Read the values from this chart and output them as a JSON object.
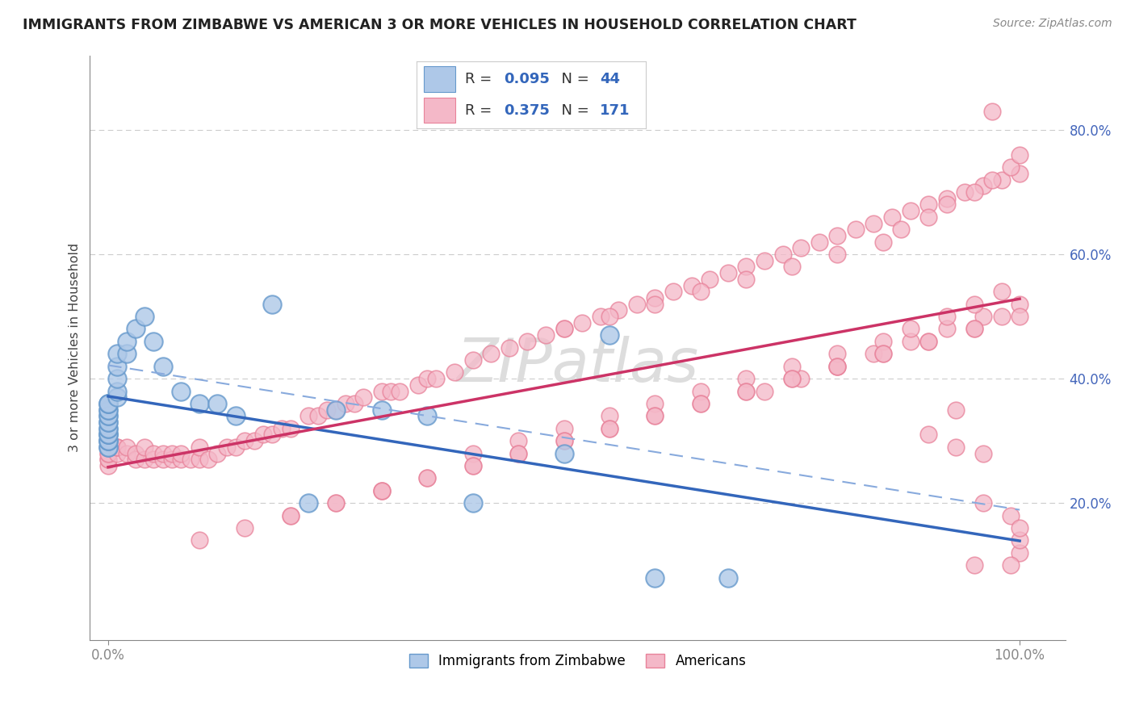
{
  "title": "IMMIGRANTS FROM ZIMBABWE VS AMERICAN 3 OR MORE VEHICLES IN HOUSEHOLD CORRELATION CHART",
  "source": "Source: ZipAtlas.com",
  "ylabel": "3 or more Vehicles in Household",
  "legend_label1": "Immigrants from Zimbabwe",
  "legend_label2": "Americans",
  "r1": 0.095,
  "n1": 44,
  "r2": 0.375,
  "n2": 171,
  "color_blue": "#aec8e8",
  "color_blue_edge": "#6699cc",
  "color_pink": "#f4b8c8",
  "color_pink_edge": "#e8829a",
  "color_blue_line": "#3366bb",
  "color_pink_line": "#cc3366",
  "color_blue_dashed": "#88aadd",
  "color_text_axis": "#4466bb",
  "background_color": "#ffffff",
  "grid_color": "#cccccc",
  "watermark": "ZIPatlas",
  "watermark_color": "#dddddd",
  "ytick_labels": [
    "20.0%",
    "40.0%",
    "60.0%",
    "80.0%"
  ],
  "ytick_vals": [
    0.2,
    0.4,
    0.6,
    0.8
  ],
  "blue_x": [
    0.0,
    0.0,
    0.0,
    0.0,
    0.0,
    0.0,
    0.0,
    0.0,
    0.0,
    0.0,
    0.0,
    0.0,
    0.0,
    0.0,
    0.0,
    0.0,
    0.0,
    0.0,
    0.0,
    0.01,
    0.01,
    0.01,
    0.01,
    0.01,
    0.02,
    0.02,
    0.03,
    0.04,
    0.05,
    0.06,
    0.08,
    0.1,
    0.12,
    0.14,
    0.18,
    0.22,
    0.25,
    0.3,
    0.35,
    0.4,
    0.5,
    0.55,
    0.6,
    0.68
  ],
  "blue_y": [
    0.29,
    0.29,
    0.3,
    0.3,
    0.3,
    0.31,
    0.31,
    0.31,
    0.32,
    0.32,
    0.33,
    0.33,
    0.34,
    0.34,
    0.35,
    0.35,
    0.36,
    0.36,
    0.36,
    0.37,
    0.38,
    0.4,
    0.42,
    0.44,
    0.44,
    0.46,
    0.48,
    0.5,
    0.46,
    0.42,
    0.38,
    0.36,
    0.36,
    0.34,
    0.52,
    0.2,
    0.35,
    0.35,
    0.34,
    0.2,
    0.28,
    0.47,
    0.08,
    0.08
  ],
  "pink_x": [
    0.0,
    0.0,
    0.0,
    0.0,
    0.0,
    0.0,
    0.0,
    0.0,
    0.0,
    0.0,
    0.01,
    0.01,
    0.01,
    0.02,
    0.02,
    0.03,
    0.03,
    0.04,
    0.04,
    0.05,
    0.05,
    0.06,
    0.06,
    0.07,
    0.07,
    0.08,
    0.08,
    0.09,
    0.1,
    0.1,
    0.11,
    0.12,
    0.13,
    0.14,
    0.15,
    0.16,
    0.17,
    0.18,
    0.19,
    0.2,
    0.22,
    0.23,
    0.24,
    0.25,
    0.26,
    0.27,
    0.28,
    0.3,
    0.31,
    0.32,
    0.34,
    0.35,
    0.36,
    0.38,
    0.4,
    0.42,
    0.44,
    0.46,
    0.48,
    0.5,
    0.52,
    0.54,
    0.56,
    0.58,
    0.6,
    0.62,
    0.64,
    0.66,
    0.68,
    0.7,
    0.72,
    0.74,
    0.76,
    0.78,
    0.8,
    0.82,
    0.84,
    0.86,
    0.88,
    0.9,
    0.92,
    0.94,
    0.96,
    0.98,
    1.0,
    0.5,
    0.55,
    0.6,
    0.65,
    0.7,
    0.75,
    0.8,
    0.85,
    0.87,
    0.9,
    0.92,
    0.95,
    0.97,
    0.99,
    1.0,
    0.72,
    0.76,
    0.8,
    0.84,
    0.88,
    0.92,
    0.96,
    1.0,
    0.4,
    0.45,
    0.5,
    0.55,
    0.6,
    0.65,
    0.7,
    0.75,
    0.8,
    0.85,
    0.88,
    0.92,
    0.95,
    0.98,
    0.3,
    0.35,
    0.4,
    0.45,
    0.5,
    0.55,
    0.6,
    0.65,
    0.7,
    0.75,
    0.8,
    0.85,
    0.9,
    0.95,
    0.98,
    0.2,
    0.25,
    0.3,
    0.35,
    0.4,
    0.45,
    0.5,
    0.55,
    0.6,
    0.65,
    0.7,
    0.75,
    0.8,
    0.85,
    0.9,
    0.95,
    1.0,
    0.1,
    0.15,
    0.2,
    0.25,
    0.3,
    0.95,
    1.0,
    0.97,
    0.99,
    1.0,
    0.93,
    0.96,
    0.99,
    1.0,
    0.9,
    0.93,
    0.96
  ],
  "pink_y": [
    0.26,
    0.27,
    0.27,
    0.28,
    0.28,
    0.29,
    0.29,
    0.3,
    0.3,
    0.3,
    0.28,
    0.29,
    0.29,
    0.28,
    0.29,
    0.27,
    0.28,
    0.27,
    0.29,
    0.27,
    0.28,
    0.27,
    0.28,
    0.27,
    0.28,
    0.27,
    0.28,
    0.27,
    0.27,
    0.29,
    0.27,
    0.28,
    0.29,
    0.29,
    0.3,
    0.3,
    0.31,
    0.31,
    0.32,
    0.32,
    0.34,
    0.34,
    0.35,
    0.35,
    0.36,
    0.36,
    0.37,
    0.38,
    0.38,
    0.38,
    0.39,
    0.4,
    0.4,
    0.41,
    0.43,
    0.44,
    0.45,
    0.46,
    0.47,
    0.48,
    0.49,
    0.5,
    0.51,
    0.52,
    0.53,
    0.54,
    0.55,
    0.56,
    0.57,
    0.58,
    0.59,
    0.6,
    0.61,
    0.62,
    0.63,
    0.64,
    0.65,
    0.66,
    0.67,
    0.68,
    0.69,
    0.7,
    0.71,
    0.72,
    0.73,
    0.48,
    0.5,
    0.52,
    0.54,
    0.56,
    0.58,
    0.6,
    0.62,
    0.64,
    0.66,
    0.68,
    0.7,
    0.72,
    0.74,
    0.76,
    0.38,
    0.4,
    0.42,
    0.44,
    0.46,
    0.48,
    0.5,
    0.52,
    0.28,
    0.3,
    0.32,
    0.34,
    0.36,
    0.38,
    0.4,
    0.42,
    0.44,
    0.46,
    0.48,
    0.5,
    0.52,
    0.54,
    0.22,
    0.24,
    0.26,
    0.28,
    0.3,
    0.32,
    0.34,
    0.36,
    0.38,
    0.4,
    0.42,
    0.44,
    0.46,
    0.48,
    0.5,
    0.18,
    0.2,
    0.22,
    0.24,
    0.26,
    0.28,
    0.3,
    0.32,
    0.34,
    0.36,
    0.38,
    0.4,
    0.42,
    0.44,
    0.46,
    0.48,
    0.5,
    0.14,
    0.16,
    0.18,
    0.2,
    0.22,
    0.1,
    0.12,
    0.83,
    0.1,
    0.14,
    0.35,
    0.2,
    0.18,
    0.16,
    0.31,
    0.29,
    0.28
  ]
}
